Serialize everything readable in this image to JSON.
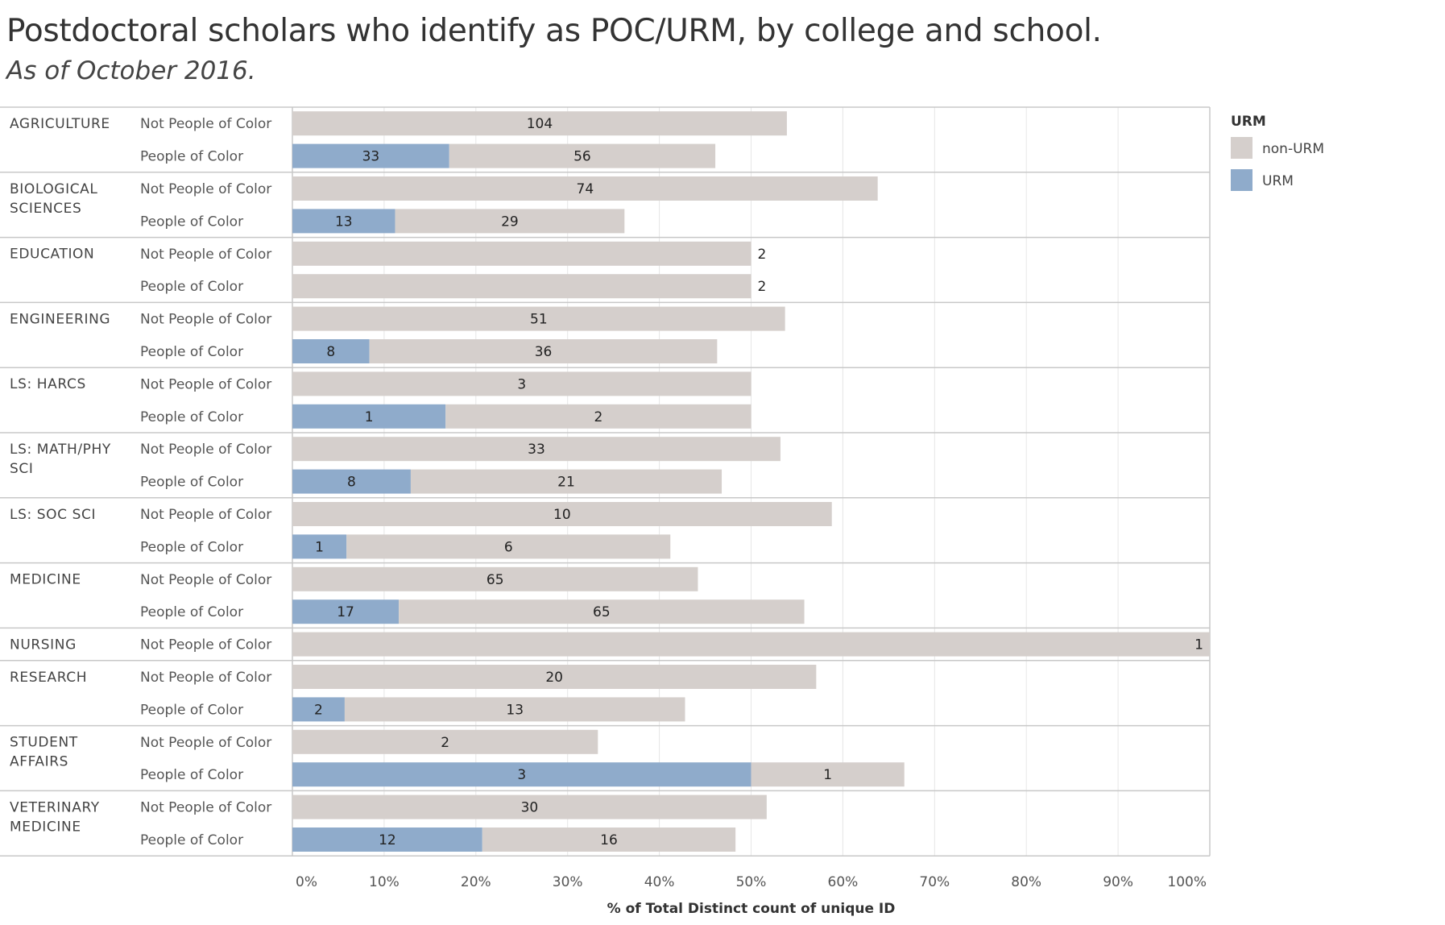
{
  "header": {
    "title": "Postdoctoral scholars who identify as POC/URM, by college and school.",
    "subtitle": "As of October 2016."
  },
  "colors": {
    "non_urm": "#d5cfcc",
    "urm": "#8fabcb",
    "grid": "#e6e6e6",
    "divider": "#c8c8c8"
  },
  "chart_data": {
    "type": "bar",
    "orientation": "horizontal",
    "stacked": true,
    "title": "Postdoctoral scholars who identify as POC/URM, by college and school.",
    "subtitle": "As of October 2016.",
    "xlabel": "% of Total Distinct count of unique ID",
    "xlim": [
      0,
      100
    ],
    "xticks": [
      "0%",
      "10%",
      "20%",
      "30%",
      "40%",
      "50%",
      "60%",
      "70%",
      "80%",
      "90%",
      "100%"
    ],
    "legend": {
      "title": "URM",
      "position": "right",
      "items": [
        {
          "label": "non-URM",
          "color": "#d5cfcc"
        },
        {
          "label": "URM",
          "color": "#8fabcb"
        }
      ]
    },
    "groups": [
      {
        "name": "AGRICULTURE",
        "rows": [
          {
            "label": "Not People of Color",
            "urm": 0,
            "non_urm": 104,
            "urm_pct": 0,
            "non_urm_pct": 53.9
          },
          {
            "label": "People of Color",
            "urm": 33,
            "non_urm": 56,
            "urm_pct": 17.1,
            "non_urm_pct": 29.0
          }
        ]
      },
      {
        "name": "BIOLOGICAL SCIENCES",
        "rows": [
          {
            "label": "Not People of Color",
            "urm": 0,
            "non_urm": 74,
            "urm_pct": 0,
            "non_urm_pct": 63.8
          },
          {
            "label": "People of Color",
            "urm": 13,
            "non_urm": 29,
            "urm_pct": 11.2,
            "non_urm_pct": 25.0
          }
        ]
      },
      {
        "name": "EDUCATION",
        "rows": [
          {
            "label": "Not People of Color",
            "urm": 0,
            "non_urm": 2,
            "urm_pct": 0,
            "non_urm_pct": 50.0
          },
          {
            "label": "People of Color",
            "urm": 0,
            "non_urm": 2,
            "urm_pct": 0,
            "non_urm_pct": 50.0
          }
        ]
      },
      {
        "name": "ENGINEERING",
        "rows": [
          {
            "label": "Not People of Color",
            "urm": 0,
            "non_urm": 51,
            "urm_pct": 0,
            "non_urm_pct": 53.7
          },
          {
            "label": "People of Color",
            "urm": 8,
            "non_urm": 36,
            "urm_pct": 8.4,
            "non_urm_pct": 37.9
          }
        ]
      },
      {
        "name": "LS: HARCS",
        "rows": [
          {
            "label": "Not People of Color",
            "urm": 0,
            "non_urm": 3,
            "urm_pct": 0,
            "non_urm_pct": 50.0
          },
          {
            "label": "People of Color",
            "urm": 1,
            "non_urm": 2,
            "urm_pct": 16.7,
            "non_urm_pct": 33.3
          }
        ]
      },
      {
        "name": "LS: MATH/PHY SCI",
        "rows": [
          {
            "label": "Not People of Color",
            "urm": 0,
            "non_urm": 33,
            "urm_pct": 0,
            "non_urm_pct": 53.2
          },
          {
            "label": "People of Color",
            "urm": 8,
            "non_urm": 21,
            "urm_pct": 12.9,
            "non_urm_pct": 33.9
          }
        ]
      },
      {
        "name": "LS: SOC SCI",
        "rows": [
          {
            "label": "Not People of Color",
            "urm": 0,
            "non_urm": 10,
            "urm_pct": 0,
            "non_urm_pct": 58.8
          },
          {
            "label": "People of Color",
            "urm": 1,
            "non_urm": 6,
            "urm_pct": 5.9,
            "non_urm_pct": 35.3
          }
        ]
      },
      {
        "name": "MEDICINE",
        "rows": [
          {
            "label": "Not People of Color",
            "urm": 0,
            "non_urm": 65,
            "urm_pct": 0,
            "non_urm_pct": 44.2
          },
          {
            "label": "People of Color",
            "urm": 17,
            "non_urm": 65,
            "urm_pct": 11.6,
            "non_urm_pct": 44.2
          }
        ]
      },
      {
        "name": "NURSING",
        "rows": [
          {
            "label": "Not People of Color",
            "urm": 0,
            "non_urm": 1,
            "urm_pct": 0,
            "non_urm_pct": 100.0
          }
        ]
      },
      {
        "name": "RESEARCH",
        "rows": [
          {
            "label": "Not People of Color",
            "urm": 0,
            "non_urm": 20,
            "urm_pct": 0,
            "non_urm_pct": 57.1
          },
          {
            "label": "People of Color",
            "urm": 2,
            "non_urm": 13,
            "urm_pct": 5.7,
            "non_urm_pct": 37.1
          }
        ]
      },
      {
        "name": "STUDENT AFFAIRS",
        "rows": [
          {
            "label": "Not People of Color",
            "urm": 0,
            "non_urm": 2,
            "urm_pct": 0,
            "non_urm_pct": 33.3
          },
          {
            "label": "People of Color",
            "urm": 3,
            "non_urm": 1,
            "urm_pct": 50.0,
            "non_urm_pct": 16.7
          }
        ]
      },
      {
        "name": "VETERINARY MEDICINE",
        "rows": [
          {
            "label": "Not People of Color",
            "urm": 0,
            "non_urm": 30,
            "urm_pct": 0,
            "non_urm_pct": 51.7
          },
          {
            "label": "People of Color",
            "urm": 12,
            "non_urm": 16,
            "urm_pct": 20.7,
            "non_urm_pct": 27.6
          }
        ]
      }
    ]
  }
}
